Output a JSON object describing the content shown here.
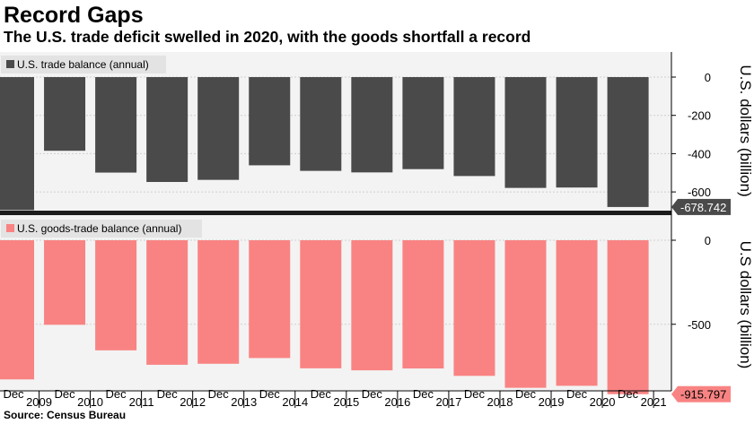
{
  "title": "Record Gaps",
  "subtitle": "The U.S. trade deficit swelled in 2020, with the goods shortfall a record",
  "source": "Source: Census Bureau",
  "chart_data": [
    {
      "type": "bar",
      "series": [
        {
          "name": "U.S. trade balance (annual)",
          "values": [
            -695,
            -385,
            -499,
            -548,
            -537,
            -461,
            -490,
            -498,
            -481,
            -517,
            -579,
            -577,
            -678.742
          ]
        }
      ],
      "categories": [
        "2009",
        "2010",
        "2011",
        "2012",
        "2013",
        "2014",
        "2015",
        "2016",
        "2017",
        "2018",
        "2019",
        "2020",
        "2021"
      ],
      "ylim": [
        -800,
        100
      ],
      "yticks": [
        0,
        -200,
        -400,
        -600
      ],
      "ylabel": "U.S. dollars (billion)",
      "last_value_label": "-678.742",
      "color": "#4a4a4a",
      "grid": true,
      "legend": "top-left"
    },
    {
      "type": "bar",
      "series": [
        {
          "name": "U.S. goods-trade balance (annual)",
          "values": [
            -828,
            -503,
            -655,
            -741,
            -735,
            -701,
            -762,
            -774,
            -763,
            -807,
            -878,
            -866,
            -915.797
          ]
        }
      ],
      "categories": [
        "2009",
        "2010",
        "2011",
        "2012",
        "2013",
        "2014",
        "2015",
        "2016",
        "2017",
        "2018",
        "2019",
        "2020",
        "2021"
      ],
      "ylim": [
        -1000,
        100
      ],
      "yticks": [
        0,
        -500
      ],
      "ylabel": "U.S dollars (billion)",
      "last_value_label": "-915.797",
      "color": "#f98383",
      "grid": true,
      "legend": "top-left"
    }
  ],
  "x_axis": {
    "month_label": "Dec",
    "year_labels": [
      "2009",
      "2010",
      "2011",
      "2012",
      "2013",
      "2014",
      "2015",
      "2016",
      "2017",
      "2018",
      "2019",
      "2020",
      "2021"
    ]
  }
}
